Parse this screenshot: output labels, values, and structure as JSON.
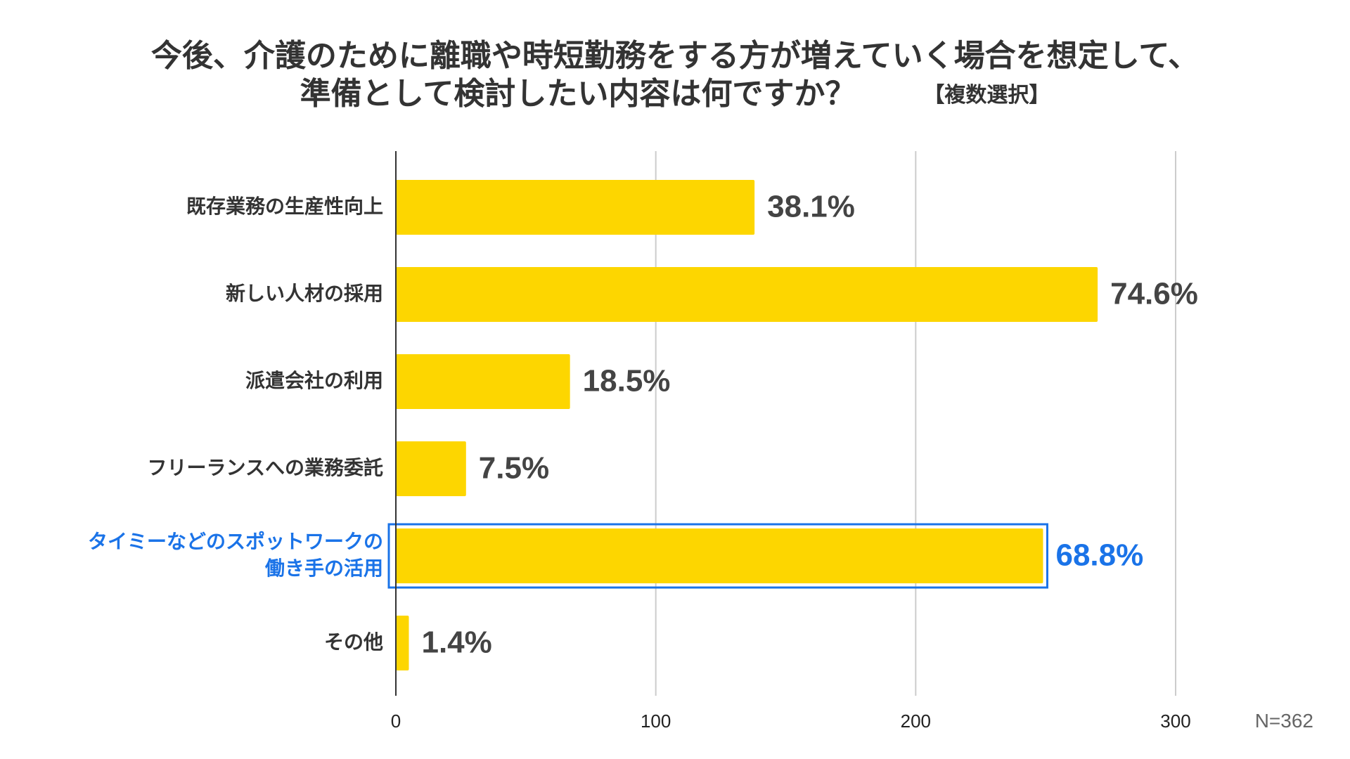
{
  "title": {
    "line1": "今後、介護のために離職や時短勤務をする方が増えていく場合を想定して、",
    "line2": "準備として検討したい内容は何ですか？",
    "note": "【複数選択】"
  },
  "chart_data": {
    "type": "bar",
    "orientation": "horizontal",
    "categories": [
      [
        "既存業務の生産性向上"
      ],
      [
        "新しい人材の採用"
      ],
      [
        "派遣会社の利用"
      ],
      [
        "フリーランスへの業務委託"
      ],
      [
        "タイミーなどのスポットワークの",
        "働き手の活用"
      ],
      [
        "その他"
      ]
    ],
    "values": [
      138,
      270,
      67,
      27,
      249,
      5
    ],
    "value_labels": [
      "38.1%",
      "74.6%",
      "18.5%",
      "7.5%",
      "68.8%",
      "1.4%"
    ],
    "highlight_index": 4,
    "xlim": [
      0,
      300
    ],
    "xticks": [
      "0",
      "100",
      "200",
      "300"
    ],
    "xtick_values": [
      0,
      100,
      200,
      300
    ],
    "grid": true,
    "n_label": "N=362",
    "colors": {
      "bar": "#FDD600",
      "highlight": "#1a73e8",
      "grid": "#cccccc",
      "axis": "#333333",
      "text": "#333333"
    }
  }
}
